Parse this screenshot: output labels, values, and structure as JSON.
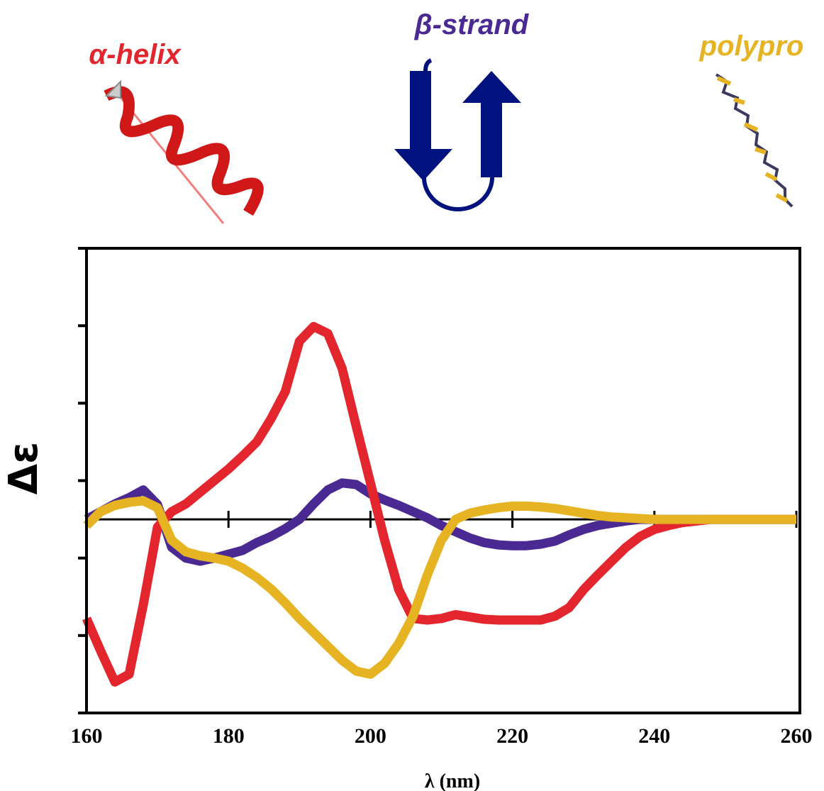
{
  "chart_data": {
    "type": "line",
    "xlabel": "λ (nm)",
    "ylabel": "Δε",
    "x": [
      160,
      162,
      164,
      166,
      168,
      170,
      172,
      174,
      176,
      178,
      180,
      182,
      184,
      186,
      188,
      190,
      192,
      194,
      196,
      198,
      200,
      202,
      204,
      206,
      208,
      210,
      212,
      214,
      216,
      218,
      220,
      222,
      224,
      226,
      228,
      230,
      232,
      234,
      236,
      238,
      240,
      242,
      244,
      246,
      248,
      250,
      252,
      254,
      256,
      258,
      260
    ],
    "series": [
      {
        "name": "α-helix",
        "color": "#e3262d",
        "values": [
          -1.28,
          -1.7,
          -2.1,
          -2.0,
          -1.1,
          -0.1,
          0.1,
          0.2,
          0.35,
          0.5,
          0.65,
          0.82,
          1.0,
          1.3,
          1.65,
          2.3,
          2.49,
          2.4,
          1.95,
          1.2,
          0.47,
          -0.27,
          -0.91,
          -1.28,
          -1.3,
          -1.28,
          -1.23,
          -1.26,
          -1.29,
          -1.3,
          -1.3,
          -1.3,
          -1.3,
          -1.25,
          -1.14,
          -0.91,
          -0.72,
          -0.54,
          -0.36,
          -0.22,
          -0.13,
          -0.08,
          -0.04,
          -0.02,
          0,
          0,
          0,
          0,
          0,
          0,
          0
        ]
      },
      {
        "name": "β-strand",
        "color": "#4a2a92",
        "values": [
          0,
          0.1,
          0.2,
          0.28,
          0.38,
          0.19,
          -0.36,
          -0.5,
          -0.54,
          -0.5,
          -0.45,
          -0.4,
          -0.3,
          -0.22,
          -0.12,
          0,
          0.2,
          0.38,
          0.47,
          0.45,
          0.33,
          0.25,
          0.18,
          0.1,
          0.02,
          -0.08,
          -0.16,
          -0.24,
          -0.3,
          -0.33,
          -0.34,
          -0.34,
          -0.32,
          -0.28,
          -0.2,
          -0.13,
          -0.08,
          -0.05,
          -0.02,
          0,
          0,
          0,
          0,
          0,
          0,
          0,
          0,
          0,
          0,
          0,
          0
        ]
      },
      {
        "name": "polypro",
        "color": "#e6b422",
        "values": [
          -0.08,
          0.1,
          0.18,
          0.22,
          0.24,
          0.15,
          -0.27,
          -0.42,
          -0.47,
          -0.5,
          -0.54,
          -0.63,
          -0.75,
          -0.9,
          -1.08,
          -1.28,
          -1.46,
          -1.64,
          -1.82,
          -1.96,
          -2.0,
          -1.86,
          -1.6,
          -1.25,
          -0.72,
          -0.27,
          0,
          0.08,
          0.12,
          0.15,
          0.17,
          0.17,
          0.16,
          0.14,
          0.11,
          0.08,
          0.05,
          0.03,
          0.02,
          0.01,
          0,
          0,
          0,
          0,
          0,
          0,
          0,
          0,
          0,
          0,
          0
        ]
      }
    ],
    "xlim": [
      160,
      260
    ],
    "xticks": [
      160,
      180,
      200,
      220,
      240,
      260
    ],
    "ylim": [
      -2.5,
      3.5
    ],
    "yticks": [
      -2.5,
      -1.5,
      -0.5,
      0.5,
      1.5,
      2.5,
      3.5
    ],
    "ytick_labels": false,
    "zero_line": true
  }
}
